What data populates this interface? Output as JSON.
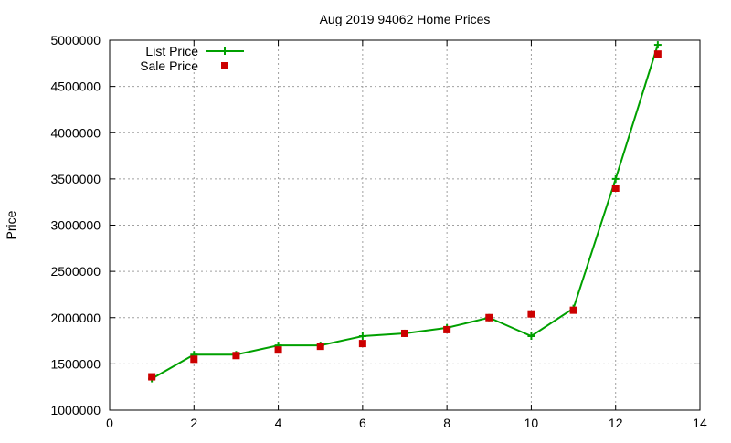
{
  "chart_data": {
    "type": "line",
    "title": "Aug 2019 94062 Home Prices",
    "xlabel": "",
    "ylabel": "Price",
    "xlim": [
      0,
      14
    ],
    "ylim": [
      1000000,
      5000000
    ],
    "x_ticks": [
      "0",
      "2",
      "4",
      "6",
      "8",
      "10",
      "12",
      "14"
    ],
    "y_ticks": [
      "1000000",
      "1500000",
      "2000000",
      "2500000",
      "3000000",
      "3500000",
      "4000000",
      "4500000",
      "5000000"
    ],
    "grid": true,
    "legend_position": "top-left",
    "series": [
      {
        "name": "List Price",
        "style": "line-with-plus-markers",
        "color": "#00a000",
        "x": [
          1,
          2,
          3,
          4,
          5,
          6,
          7,
          8,
          9,
          10,
          11,
          12,
          13
        ],
        "y": [
          1340000,
          1600000,
          1600000,
          1700000,
          1700000,
          1800000,
          1830000,
          1890000,
          2000000,
          1800000,
          2100000,
          3500000,
          4950000
        ]
      },
      {
        "name": "Sale Price",
        "style": "square-markers",
        "color": "#cc0000",
        "x": [
          1,
          2,
          3,
          4,
          5,
          6,
          7,
          8,
          9,
          10,
          11,
          12,
          13
        ],
        "y": [
          1360000,
          1550000,
          1590000,
          1650000,
          1690000,
          1720000,
          1830000,
          1870000,
          2000000,
          2040000,
          2080000,
          3400000,
          4850000
        ]
      }
    ]
  }
}
